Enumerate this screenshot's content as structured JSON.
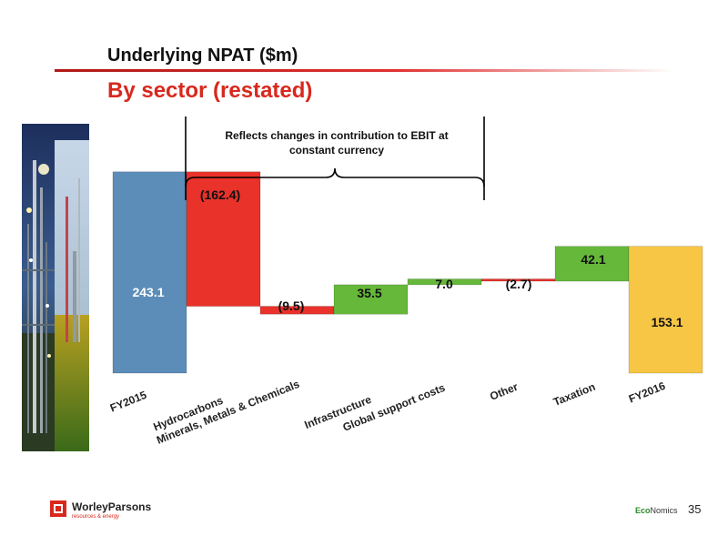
{
  "slide": {
    "title": "Underlying NPAT ($m)",
    "subtitle": "By sector (restated)",
    "page_number": "35",
    "brand_name": "WorleyParsons",
    "brand_tagline": "resources & energy",
    "econ_part1": "Eco",
    "econ_part2": "Nomics"
  },
  "colors": {
    "start_end_blue": "#5b8db8",
    "negative_red": "#e8322a",
    "positive_green": "#66b83a",
    "end_yellow": "#f7c644",
    "accent_red": "#d8281e"
  },
  "chart_data": {
    "type": "waterfall",
    "title": "",
    "xlabel": "",
    "ylabel": "",
    "ylim": [
      0,
      250
    ],
    "grid": false,
    "annotation": "Reflects changes in contribution to EBIT at constant currency",
    "categories": [
      "FY2015",
      "Hydrocarbons",
      "Minerals, Metals & Chemicals",
      "Infrastructure",
      "Global support costs",
      "Other",
      "Taxation",
      "FY2016"
    ],
    "values": [
      243.1,
      -162.4,
      -9.5,
      35.5,
      7.0,
      -2.7,
      42.1,
      153.1
    ],
    "kinds": [
      "total",
      "delta",
      "delta",
      "delta",
      "delta",
      "delta",
      "delta",
      "total"
    ],
    "labels": [
      "243.1",
      "(162.4)",
      "(9.5)",
      "35.5",
      "7.0",
      "(2.7)",
      "42.1",
      "153.1"
    ],
    "bar_colors": [
      "#5b8db8",
      "#e8322a",
      "#e8322a",
      "#66b83a",
      "#66b83a",
      "#e8322a",
      "#66b83a",
      "#f7c644"
    ]
  }
}
